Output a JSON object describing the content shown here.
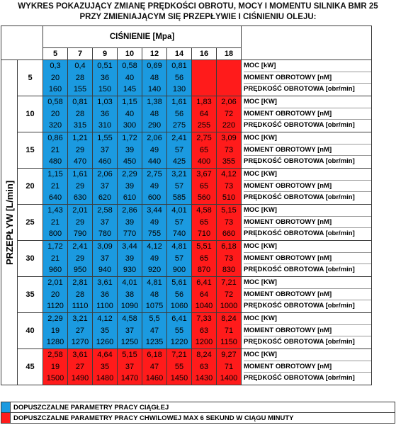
{
  "title": {
    "line1": "WYKRES POKAZUJĄCY ZMIANĘ PRĘDKOŚCI OBROTU, MOCY I MOMENTU SILNIKA BMR 25",
    "line2": "PRZY ZMIENIAJĄCYM SIĘ PRZEPŁYWIE I CIŚNIENIU OLEJU:"
  },
  "pressure_header": "CIŚNIENIE  [Mpa]",
  "flow_axis_label": "PRZEPŁYW [L/min]",
  "pressures": [
    "5",
    "7",
    "9",
    "10",
    "12",
    "14",
    "16",
    "18"
  ],
  "row_labels": [
    "MOC [kW]",
    "MOMENT OBROTOWY [nM]",
    "PRĘDKOŚĆ OBROTOWA [obr/min]"
  ],
  "row_labels_alt": [
    "MOC [kW]",
    "MOMENT OBROTOWY [nM]",
    "PRĘDKOŚĆ OBROTOWA [obr/min]"
  ],
  "colors": {
    "continuous": "#1b9ae0",
    "intermittent": "#ff1b1b"
  },
  "flows": [
    {
      "flow": "5",
      "labels": [
        "MOC [kW]",
        "MOMENT OBROTOWY [nM]",
        "PRĘDKOŚĆ OBROTOWA [obr/min]"
      ],
      "cells": [
        {
          "c": "blue",
          "v": [
            "0,3",
            "20",
            "160"
          ]
        },
        {
          "c": "blue",
          "v": [
            "0,4",
            "28",
            "155"
          ]
        },
        {
          "c": "blue",
          "v": [
            "0,51",
            "36",
            "150"
          ]
        },
        {
          "c": "blue",
          "v": [
            "0,58",
            "40",
            "145"
          ]
        },
        {
          "c": "blue",
          "v": [
            "0,69",
            "48",
            "140"
          ]
        },
        {
          "c": "blue",
          "v": [
            "0,81",
            "56",
            "130"
          ]
        },
        {
          "c": "red",
          "v": [
            "",
            "",
            ""
          ]
        },
        {
          "c": "red",
          "v": [
            "",
            "",
            ""
          ]
        }
      ]
    },
    {
      "flow": "10",
      "labels": [
        "MOC [KW]",
        "MOMENT OBROTOWY [nM]",
        "PRĘDKOŚĆ OBROTOWA [obr/min]"
      ],
      "cells": [
        {
          "c": "blue",
          "v": [
            "0,58",
            "20",
            "320"
          ]
        },
        {
          "c": "blue",
          "v": [
            "0,81",
            "28",
            "315"
          ]
        },
        {
          "c": "blue",
          "v": [
            "1,03",
            "36",
            "310"
          ]
        },
        {
          "c": "blue",
          "v": [
            "1,15",
            "40",
            "300"
          ]
        },
        {
          "c": "blue",
          "v": [
            "1,38",
            "48",
            "290"
          ]
        },
        {
          "c": "blue",
          "v": [
            "1,61",
            "56",
            "275"
          ]
        },
        {
          "c": "red",
          "v": [
            "1,83",
            "64",
            "255"
          ]
        },
        {
          "c": "red",
          "v": [
            "2,06",
            "72",
            "220"
          ]
        }
      ]
    },
    {
      "flow": "15",
      "labels": [
        "MOC [KW]",
        "MOMENT OBROTOWY [nM]",
        "PRĘDKOŚĆ OBROTOWA [obr/min]"
      ],
      "cells": [
        {
          "c": "blue",
          "v": [
            "0,86",
            "21",
            "480"
          ]
        },
        {
          "c": "blue",
          "v": [
            "1,21",
            "29",
            "470"
          ]
        },
        {
          "c": "blue",
          "v": [
            "1,55",
            "37",
            "460"
          ]
        },
        {
          "c": "blue",
          "v": [
            "1,72",
            "39",
            "450"
          ]
        },
        {
          "c": "blue",
          "v": [
            "2,06",
            "49",
            "440"
          ]
        },
        {
          "c": "blue",
          "v": [
            "2,41",
            "57",
            "425"
          ]
        },
        {
          "c": "red",
          "v": [
            "2,75",
            "65",
            "400"
          ]
        },
        {
          "c": "red",
          "v": [
            "3,09",
            "73",
            "355"
          ]
        }
      ]
    },
    {
      "flow": "20",
      "labels": [
        "MOC [KW]",
        "MOMENT OBROTOWY [nM]",
        "PRĘDKOŚĆ OBROTOWA [obr/min]"
      ],
      "cells": [
        {
          "c": "blue",
          "v": [
            "1,15",
            "21",
            "640"
          ]
        },
        {
          "c": "blue",
          "v": [
            "1,61",
            "29",
            "630"
          ]
        },
        {
          "c": "blue",
          "v": [
            "2,06",
            "37",
            "620"
          ]
        },
        {
          "c": "blue",
          "v": [
            "2,29",
            "39",
            "610"
          ]
        },
        {
          "c": "blue",
          "v": [
            "2,75",
            "49",
            "600"
          ]
        },
        {
          "c": "blue",
          "v": [
            "3,21",
            "57",
            "585"
          ]
        },
        {
          "c": "red",
          "v": [
            "3,67",
            "65",
            "560"
          ]
        },
        {
          "c": "red",
          "v": [
            "4,12",
            "73",
            "510"
          ]
        }
      ]
    },
    {
      "flow": "25",
      "labels": [
        "MOC [KW]",
        "MOMENT OBROTOWY [nM]",
        "PRĘDKOŚĆ OBROTOWA [obr/min]"
      ],
      "cells": [
        {
          "c": "blue",
          "v": [
            "1,43",
            "21",
            "800"
          ]
        },
        {
          "c": "blue",
          "v": [
            "2,01",
            "29",
            "790"
          ]
        },
        {
          "c": "blue",
          "v": [
            "2,58",
            "37",
            "780"
          ]
        },
        {
          "c": "blue",
          "v": [
            "2,86",
            "39",
            "770"
          ]
        },
        {
          "c": "blue",
          "v": [
            "3,44",
            "49",
            "755"
          ]
        },
        {
          "c": "blue",
          "v": [
            "4,01",
            "57",
            "740"
          ]
        },
        {
          "c": "red",
          "v": [
            "4,58",
            "65",
            "710"
          ]
        },
        {
          "c": "red",
          "v": [
            "5,15",
            "73",
            "660"
          ]
        }
      ]
    },
    {
      "flow": "30",
      "labels": [
        "MOC [KW]",
        "MOMENT OBROTOWY [nM]",
        "PRĘDKOŚĆ OBROTOWA [obr/min]"
      ],
      "cells": [
        {
          "c": "blue",
          "v": [
            "1,72",
            "21",
            "960"
          ]
        },
        {
          "c": "blue",
          "v": [
            "2,41",
            "29",
            "950"
          ]
        },
        {
          "c": "blue",
          "v": [
            "3,09",
            "37",
            "940"
          ]
        },
        {
          "c": "blue",
          "v": [
            "3,44",
            "39",
            "930"
          ]
        },
        {
          "c": "blue",
          "v": [
            "4,12",
            "49",
            "920"
          ]
        },
        {
          "c": "blue",
          "v": [
            "4,81",
            "57",
            "900"
          ]
        },
        {
          "c": "red",
          "v": [
            "5,51",
            "65",
            "870"
          ]
        },
        {
          "c": "red",
          "v": [
            "6,18",
            "73",
            "830"
          ]
        }
      ]
    },
    {
      "flow": "35",
      "labels": [
        "MOC [KW]",
        "MOMENT OBROTOWY [nM]",
        "PRĘDKOŚĆ OBROTOWA [obr/min]"
      ],
      "cells": [
        {
          "c": "blue",
          "v": [
            "2,01",
            "20",
            "1120"
          ]
        },
        {
          "c": "blue",
          "v": [
            "2,81",
            "28",
            "1110"
          ]
        },
        {
          "c": "blue",
          "v": [
            "3,61",
            "36",
            "1100"
          ]
        },
        {
          "c": "blue",
          "v": [
            "4,01",
            "38",
            "1090"
          ]
        },
        {
          "c": "blue",
          "v": [
            "4,81",
            "48",
            "1075"
          ]
        },
        {
          "c": "blue",
          "v": [
            "5,61",
            "56",
            "1060"
          ]
        },
        {
          "c": "red",
          "v": [
            "6,41",
            "64",
            "1040"
          ]
        },
        {
          "c": "red",
          "v": [
            "7,21",
            "72",
            "1000"
          ]
        }
      ]
    },
    {
      "flow": "40",
      "labels": [
        "MOC [KW]",
        "MOMENT OBROTOWY [nM]",
        "PRĘDKOŚĆ OBROTOWA [obr/min]"
      ],
      "cells": [
        {
          "c": "blue",
          "v": [
            "2,29",
            "19",
            "1280"
          ]
        },
        {
          "c": "blue",
          "v": [
            "3,21",
            "27",
            "1270"
          ]
        },
        {
          "c": "blue",
          "v": [
            "4,12",
            "35",
            "1260"
          ]
        },
        {
          "c": "blue",
          "v": [
            "4,58",
            "37",
            "1250"
          ]
        },
        {
          "c": "blue",
          "v": [
            "5,5",
            "47",
            "1235"
          ]
        },
        {
          "c": "blue",
          "v": [
            "6,41",
            "55",
            "1220"
          ]
        },
        {
          "c": "red",
          "v": [
            "7,33",
            "63",
            "1200"
          ]
        },
        {
          "c": "red",
          "v": [
            "8,24",
            "71",
            "1150"
          ]
        }
      ]
    },
    {
      "flow": "45",
      "labels": [
        "MOC [KW]",
        "MOMENT OBROTOWY [nM]",
        "PRĘDKOŚĆ OBROTOWA [obr/min]"
      ],
      "cells": [
        {
          "c": "red",
          "v": [
            "2,58",
            "19",
            "1500"
          ]
        },
        {
          "c": "red",
          "v": [
            "3,61",
            "27",
            "1490"
          ]
        },
        {
          "c": "red",
          "v": [
            "4,64",
            "35",
            "1480"
          ]
        },
        {
          "c": "red",
          "v": [
            "5,15",
            "37",
            "1470"
          ]
        },
        {
          "c": "red",
          "v": [
            "6,18",
            "47",
            "1460"
          ]
        },
        {
          "c": "red",
          "v": [
            "7,21",
            "55",
            "1450"
          ]
        },
        {
          "c": "red",
          "v": [
            "8,24",
            "63",
            "1430"
          ]
        },
        {
          "c": "red",
          "v": [
            "9,27",
            "71",
            "1400"
          ]
        }
      ]
    }
  ],
  "legend": [
    {
      "color": "#1b9ae0",
      "text": "DOPUSZCZALNE PARAMETRY PRACY CIĄGŁEJ"
    },
    {
      "color": "#ff1b1b",
      "text": "DOPUSZCZALNE PARAMETRY PRACY CHWILOWEJ MAX 6 SEKUND W CIĄGU MINUTY"
    }
  ]
}
